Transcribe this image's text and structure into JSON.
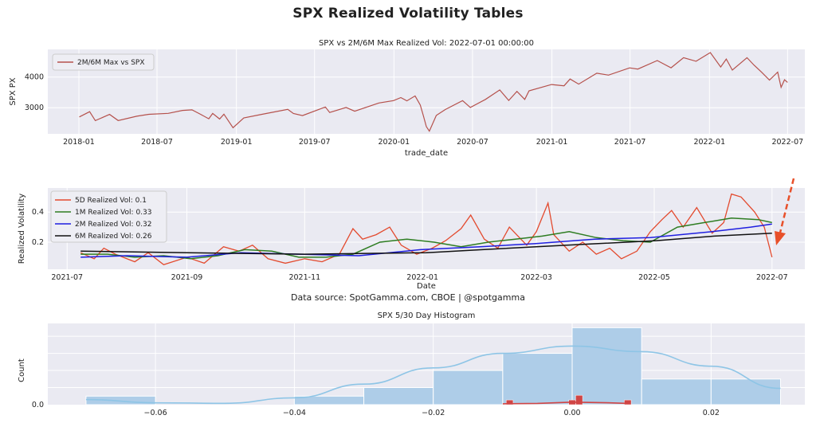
{
  "figure_title": "SPX Realized Volatility Tables",
  "source_note": "Data source: SpotGamma.com, CBOE | @spotgamma",
  "colors": {
    "plot_bg": "#eaeaf2",
    "grid": "#ffffff",
    "spx_line": "#b5514c",
    "vol_5d": "#e34a2e",
    "vol_1m": "#2e7d22",
    "vol_2m": "#1f1fe0",
    "vol_6m": "#111111",
    "hist_fill": "#aecde8",
    "hist_kde": "#8ec5e6",
    "hist_red": "#d04545",
    "arrow": "#e8502a"
  },
  "chart_data": [
    {
      "type": "line",
      "title": "SPX vs 2M/6M Max Realized Vol: 2022-07-01 00:00:00",
      "xlabel": "trade_date",
      "ylabel": "SPX PX",
      "x_ticks": [
        "2018-01",
        "2018-07",
        "2019-01",
        "2019-07",
        "2020-01",
        "2020-07",
        "2021-01",
        "2021-07",
        "2022-01",
        "2022-07"
      ],
      "y_ticks": [
        3000,
        4000
      ],
      "ylim": [
        2150,
        4900
      ],
      "xlim": [
        "2017-10-21",
        "2022-08-10"
      ],
      "grid": true,
      "legend": "top-left",
      "series": [
        {
          "name": "2M/6M Max vs SPX",
          "x": [
            "2018-01-02",
            "2018-01-26",
            "2018-02-08",
            "2018-03-13",
            "2018-04-02",
            "2018-05-15",
            "2018-06-12",
            "2018-07-27",
            "2018-08-29",
            "2018-09-20",
            "2018-10-10",
            "2018-10-29",
            "2018-11-07",
            "2018-11-23",
            "2018-12-03",
            "2018-12-24",
            "2019-01-18",
            "2019-02-28",
            "2019-04-30",
            "2019-05-13",
            "2019-06-03",
            "2019-07-26",
            "2019-08-05",
            "2019-09-12",
            "2019-10-02",
            "2019-11-27",
            "2019-12-31",
            "2020-01-17",
            "2020-01-31",
            "2020-02-19",
            "2020-03-02",
            "2020-03-09",
            "2020-03-16",
            "2020-03-23",
            "2020-04-08",
            "2020-04-29",
            "2020-06-08",
            "2020-06-26",
            "2020-07-31",
            "2020-09-02",
            "2020-09-23",
            "2020-10-12",
            "2020-10-30",
            "2020-11-09",
            "2020-12-31",
            "2021-01-29",
            "2021-02-12",
            "2021-03-04",
            "2021-04-15",
            "2021-05-12",
            "2021-06-30",
            "2021-07-19",
            "2021-09-02",
            "2021-10-04",
            "2021-11-02",
            "2021-12-01",
            "2022-01-03",
            "2022-01-27",
            "2022-02-09",
            "2022-02-23",
            "2022-03-29",
            "2022-04-14",
            "2022-05-02",
            "2022-05-20",
            "2022-06-08",
            "2022-06-16",
            "2022-06-24",
            "2022-07-01"
          ],
          "values": [
            2700,
            2872,
            2581,
            2783,
            2582,
            2724,
            2786,
            2818,
            2914,
            2930,
            2785,
            2641,
            2813,
            2632,
            2790,
            2351,
            2670,
            2784,
            2946,
            2812,
            2744,
            3025,
            2845,
            3009,
            2887,
            3153,
            3231,
            3330,
            3225,
            3386,
            3090,
            2746,
            2386,
            2237,
            2750,
            2940,
            3232,
            3009,
            3271,
            3580,
            3237,
            3534,
            3270,
            3550,
            3756,
            3714,
            3934,
            3768,
            4124,
            4063,
            4297,
            4258,
            4537,
            4300,
            4630,
            4513,
            4796,
            4326,
            4587,
            4225,
            4631,
            4392,
            4155,
            3901,
            4160,
            3666,
            3911,
            3825
          ]
        }
      ]
    },
    {
      "type": "line",
      "title": "",
      "xlabel": "Date",
      "ylabel": "Realized Volatility",
      "x_ticks": [
        "2021-07",
        "2021-09",
        "2021-11",
        "2022-01",
        "2022-03",
        "2022-05",
        "2022-07"
      ],
      "y_ticks": [
        0.2,
        0.4
      ],
      "ylim": [
        0.02,
        0.56
      ],
      "xlim": [
        "2021-06-21",
        "2022-07-18"
      ],
      "grid": true,
      "legend": "top-left",
      "series": [
        {
          "name": "5D Realized Vol: 0.1",
          "x": [
            "2021-07-08",
            "2021-07-15",
            "2021-07-20",
            "2021-07-26",
            "2021-08-05",
            "2021-08-12",
            "2021-08-20",
            "2021-09-01",
            "2021-09-10",
            "2021-09-20",
            "2021-09-28",
            "2021-10-05",
            "2021-10-13",
            "2021-10-22",
            "2021-11-01",
            "2021-11-10",
            "2021-11-19",
            "2021-11-26",
            "2021-12-01",
            "2021-12-08",
            "2021-12-15",
            "2021-12-21",
            "2021-12-29",
            "2022-01-06",
            "2022-01-13",
            "2022-01-21",
            "2022-01-26",
            "2022-02-02",
            "2022-02-09",
            "2022-02-15",
            "2022-02-24",
            "2022-03-01",
            "2022-03-07",
            "2022-03-10",
            "2022-03-18",
            "2022-03-25",
            "2022-04-01",
            "2022-04-08",
            "2022-04-14",
            "2022-04-22",
            "2022-04-29",
            "2022-05-05",
            "2022-05-10",
            "2022-05-16",
            "2022-05-23",
            "2022-05-31",
            "2022-06-06",
            "2022-06-10",
            "2022-06-15",
            "2022-06-22",
            "2022-06-27",
            "2022-07-01"
          ],
          "values": [
            0.13,
            0.09,
            0.16,
            0.12,
            0.07,
            0.13,
            0.05,
            0.1,
            0.06,
            0.17,
            0.14,
            0.18,
            0.09,
            0.06,
            0.09,
            0.07,
            0.12,
            0.29,
            0.22,
            0.25,
            0.3,
            0.18,
            0.12,
            0.16,
            0.21,
            0.29,
            0.38,
            0.22,
            0.16,
            0.3,
            0.18,
            0.27,
            0.46,
            0.25,
            0.14,
            0.2,
            0.12,
            0.16,
            0.09,
            0.14,
            0.27,
            0.35,
            0.41,
            0.3,
            0.43,
            0.26,
            0.33,
            0.52,
            0.5,
            0.4,
            0.3,
            0.1
          ]
        },
        {
          "name": "1M Realized Vol: 0.33",
          "x": [
            "2021-07-08",
            "2021-07-22",
            "2021-08-05",
            "2021-08-20",
            "2021-09-03",
            "2021-09-17",
            "2021-10-01",
            "2021-10-15",
            "2021-10-29",
            "2021-11-12",
            "2021-11-26",
            "2021-12-10",
            "2021-12-24",
            "2022-01-07",
            "2022-01-21",
            "2022-02-04",
            "2022-02-18",
            "2022-03-04",
            "2022-03-18",
            "2022-04-01",
            "2022-04-15",
            "2022-04-29",
            "2022-05-13",
            "2022-05-27",
            "2022-06-10",
            "2022-06-24",
            "2022-07-01"
          ],
          "values": [
            0.12,
            0.12,
            0.1,
            0.11,
            0.09,
            0.11,
            0.15,
            0.14,
            0.1,
            0.1,
            0.12,
            0.2,
            0.22,
            0.2,
            0.17,
            0.2,
            0.22,
            0.24,
            0.27,
            0.23,
            0.21,
            0.2,
            0.3,
            0.33,
            0.36,
            0.35,
            0.33
          ]
        },
        {
          "name": "2M Realized Vol: 0.32",
          "x": [
            "2021-07-08",
            "2021-08-01",
            "2021-09-01",
            "2021-09-29",
            "2021-10-29",
            "2021-11-29",
            "2021-12-31",
            "2022-01-31",
            "2022-02-28",
            "2022-03-31",
            "2022-04-29",
            "2022-05-31",
            "2022-06-20",
            "2022-07-01"
          ],
          "values": [
            0.1,
            0.11,
            0.1,
            0.13,
            0.12,
            0.11,
            0.15,
            0.17,
            0.19,
            0.22,
            0.23,
            0.27,
            0.3,
            0.32
          ]
        },
        {
          "name": "6M Realized Vol: 0.26",
          "x": [
            "2021-07-08",
            "2021-09-01",
            "2021-11-01",
            "2022-01-03",
            "2022-02-01",
            "2022-03-01",
            "2022-04-01",
            "2022-05-02",
            "2022-06-01",
            "2022-07-01"
          ],
          "values": [
            0.14,
            0.13,
            0.12,
            0.13,
            0.15,
            0.17,
            0.19,
            0.21,
            0.24,
            0.26
          ]
        }
      ]
    },
    {
      "type": "bar",
      "title": "SPX 5/30 Day Histogram",
      "xlabel": "",
      "ylabel": "Count",
      "x_ticks": [
        -0.06,
        -0.04,
        -0.02,
        0.0,
        0.02
      ],
      "y_ticks": [
        0.0
      ],
      "xlim": [
        -0.0755,
        0.0335
      ],
      "ylim": [
        0,
        9.5
      ],
      "grid": true,
      "series": [
        {
          "name": "",
          "bins": [
            [
              -0.07,
              -0.06
            ],
            [
              -0.06,
              -0.05
            ],
            [
              -0.05,
              -0.04
            ],
            [
              -0.04,
              -0.03
            ],
            [
              -0.03,
              -0.02
            ],
            [
              -0.02,
              -0.01
            ],
            [
              -0.01,
              0.0
            ],
            [
              0.0,
              0.01
            ],
            [
              0.01,
              0.02
            ],
            [
              0.02,
              0.03
            ]
          ],
          "values": [
            1,
            0,
            0,
            1,
            2,
            4,
            6,
            9,
            3,
            3
          ]
        },
        {
          "name": "",
          "bins": [
            [
              -0.0095,
              -0.0085
            ],
            [
              -0.0005,
              0.0005
            ],
            [
              0.0005,
              0.0015
            ],
            [
              0.0075,
              0.0085
            ]
          ],
          "values": [
            0.55,
            0.55,
            1.1,
            0.55
          ]
        }
      ],
      "kde": {
        "x": [
          -0.07,
          -0.06,
          -0.05,
          -0.04,
          -0.03,
          -0.02,
          -0.01,
          0.0,
          0.01,
          0.02,
          0.03
        ],
        "values": [
          0.6,
          0.22,
          0.16,
          0.8,
          2.4,
          4.3,
          6.0,
          6.85,
          6.2,
          4.5,
          1.9
        ]
      },
      "kde2": {
        "x": [
          -0.01,
          -0.005,
          0.0,
          0.005,
          0.008
        ],
        "values": [
          0.1,
          0.15,
          0.3,
          0.22,
          0.15
        ]
      }
    }
  ]
}
